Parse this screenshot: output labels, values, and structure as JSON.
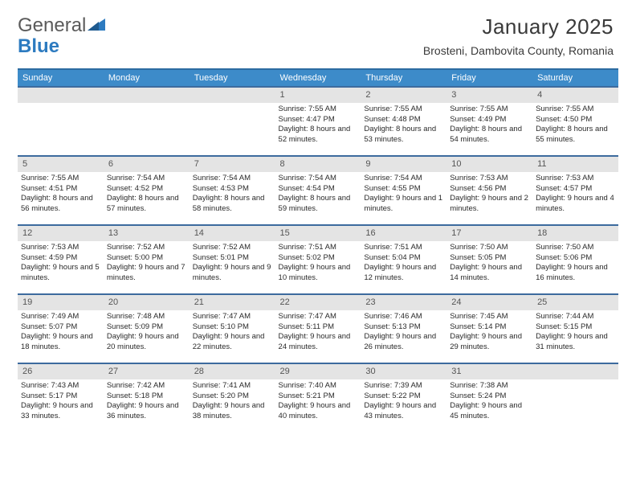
{
  "logo": {
    "text1": "General",
    "text2": "Blue"
  },
  "title": "January 2025",
  "location": "Brosteni, Dambovita County, Romania",
  "colors": {
    "header_bg": "#3d8bc9",
    "header_border": "#2d6ba0",
    "row_border": "#3d6b9e",
    "daynum_bg": "#e4e4e4",
    "logo_gray": "#5a5a5a",
    "logo_blue": "#2d7bc0"
  },
  "weekdays": [
    "Sunday",
    "Monday",
    "Tuesday",
    "Wednesday",
    "Thursday",
    "Friday",
    "Saturday"
  ],
  "grid": [
    [
      null,
      null,
      null,
      {
        "n": "1",
        "rise": "7:55 AM",
        "set": "4:47 PM",
        "dh": "8",
        "dm": "52"
      },
      {
        "n": "2",
        "rise": "7:55 AM",
        "set": "4:48 PM",
        "dh": "8",
        "dm": "53"
      },
      {
        "n": "3",
        "rise": "7:55 AM",
        "set": "4:49 PM",
        "dh": "8",
        "dm": "54"
      },
      {
        "n": "4",
        "rise": "7:55 AM",
        "set": "4:50 PM",
        "dh": "8",
        "dm": "55"
      }
    ],
    [
      {
        "n": "5",
        "rise": "7:55 AM",
        "set": "4:51 PM",
        "dh": "8",
        "dm": "56"
      },
      {
        "n": "6",
        "rise": "7:54 AM",
        "set": "4:52 PM",
        "dh": "8",
        "dm": "57"
      },
      {
        "n": "7",
        "rise": "7:54 AM",
        "set": "4:53 PM",
        "dh": "8",
        "dm": "58"
      },
      {
        "n": "8",
        "rise": "7:54 AM",
        "set": "4:54 PM",
        "dh": "8",
        "dm": "59"
      },
      {
        "n": "9",
        "rise": "7:54 AM",
        "set": "4:55 PM",
        "dh": "9",
        "dm": "1"
      },
      {
        "n": "10",
        "rise": "7:53 AM",
        "set": "4:56 PM",
        "dh": "9",
        "dm": "2"
      },
      {
        "n": "11",
        "rise": "7:53 AM",
        "set": "4:57 PM",
        "dh": "9",
        "dm": "4"
      }
    ],
    [
      {
        "n": "12",
        "rise": "7:53 AM",
        "set": "4:59 PM",
        "dh": "9",
        "dm": "5"
      },
      {
        "n": "13",
        "rise": "7:52 AM",
        "set": "5:00 PM",
        "dh": "9",
        "dm": "7"
      },
      {
        "n": "14",
        "rise": "7:52 AM",
        "set": "5:01 PM",
        "dh": "9",
        "dm": "9"
      },
      {
        "n": "15",
        "rise": "7:51 AM",
        "set": "5:02 PM",
        "dh": "9",
        "dm": "10"
      },
      {
        "n": "16",
        "rise": "7:51 AM",
        "set": "5:04 PM",
        "dh": "9",
        "dm": "12"
      },
      {
        "n": "17",
        "rise": "7:50 AM",
        "set": "5:05 PM",
        "dh": "9",
        "dm": "14"
      },
      {
        "n": "18",
        "rise": "7:50 AM",
        "set": "5:06 PM",
        "dh": "9",
        "dm": "16"
      }
    ],
    [
      {
        "n": "19",
        "rise": "7:49 AM",
        "set": "5:07 PM",
        "dh": "9",
        "dm": "18"
      },
      {
        "n": "20",
        "rise": "7:48 AM",
        "set": "5:09 PM",
        "dh": "9",
        "dm": "20"
      },
      {
        "n": "21",
        "rise": "7:47 AM",
        "set": "5:10 PM",
        "dh": "9",
        "dm": "22"
      },
      {
        "n": "22",
        "rise": "7:47 AM",
        "set": "5:11 PM",
        "dh": "9",
        "dm": "24"
      },
      {
        "n": "23",
        "rise": "7:46 AM",
        "set": "5:13 PM",
        "dh": "9",
        "dm": "26"
      },
      {
        "n": "24",
        "rise": "7:45 AM",
        "set": "5:14 PM",
        "dh": "9",
        "dm": "29"
      },
      {
        "n": "25",
        "rise": "7:44 AM",
        "set": "5:15 PM",
        "dh": "9",
        "dm": "31"
      }
    ],
    [
      {
        "n": "26",
        "rise": "7:43 AM",
        "set": "5:17 PM",
        "dh": "9",
        "dm": "33"
      },
      {
        "n": "27",
        "rise": "7:42 AM",
        "set": "5:18 PM",
        "dh": "9",
        "dm": "36"
      },
      {
        "n": "28",
        "rise": "7:41 AM",
        "set": "5:20 PM",
        "dh": "9",
        "dm": "38"
      },
      {
        "n": "29",
        "rise": "7:40 AM",
        "set": "5:21 PM",
        "dh": "9",
        "dm": "40"
      },
      {
        "n": "30",
        "rise": "7:39 AM",
        "set": "5:22 PM",
        "dh": "9",
        "dm": "43"
      },
      {
        "n": "31",
        "rise": "7:38 AM",
        "set": "5:24 PM",
        "dh": "9",
        "dm": "45"
      },
      null
    ]
  ],
  "labels": {
    "sunrise": "Sunrise:",
    "sunset": "Sunset:",
    "daylight_fmt": "Daylight: {H} hours and {M} minutes."
  }
}
